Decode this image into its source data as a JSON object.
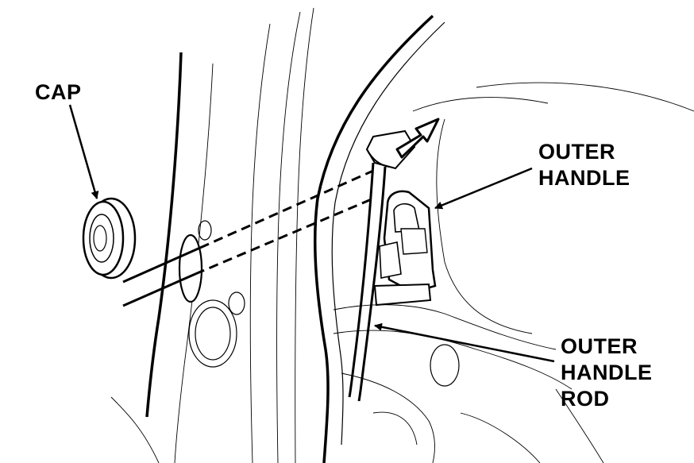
{
  "labels": {
    "cap": "CAP",
    "outer_handle": "OUTER\nHANDLE",
    "outer_handle_rod": "OUTER\nHANDLE\nROD"
  },
  "colors": {
    "line": "#000000",
    "background": "#ffffff"
  }
}
